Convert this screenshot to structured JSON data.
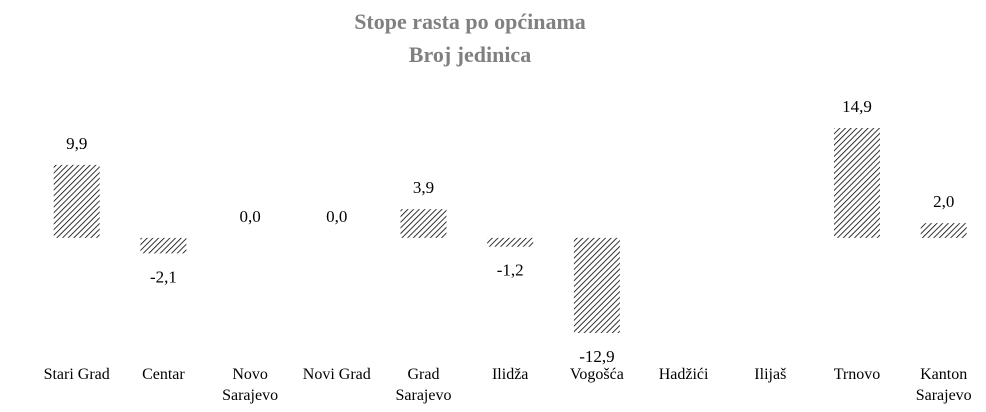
{
  "chart_data": {
    "type": "bar",
    "title": "Stope rasta po općinama",
    "subtitle": "Broj jedinica",
    "categories": [
      "Stari Grad",
      "Centar",
      "Novo Sarajevo",
      "Novi Grad",
      "Grad Sarajevo",
      "Ilidža",
      "Vogošća",
      "Hadžići",
      "Ilijaš",
      "Trnovo",
      "Kanton Sarajevo"
    ],
    "values": [
      9.9,
      -2.1,
      0.0,
      0.0,
      3.9,
      -1.2,
      -12.9,
      null,
      null,
      14.9,
      2.0
    ],
    "value_labels": [
      "9,9",
      "-2,1",
      "0,0",
      "0,0",
      "3,9",
      "-1,2",
      "-12,9",
      null,
      null,
      "14,9",
      "2,0"
    ],
    "color": "#000000"
  }
}
